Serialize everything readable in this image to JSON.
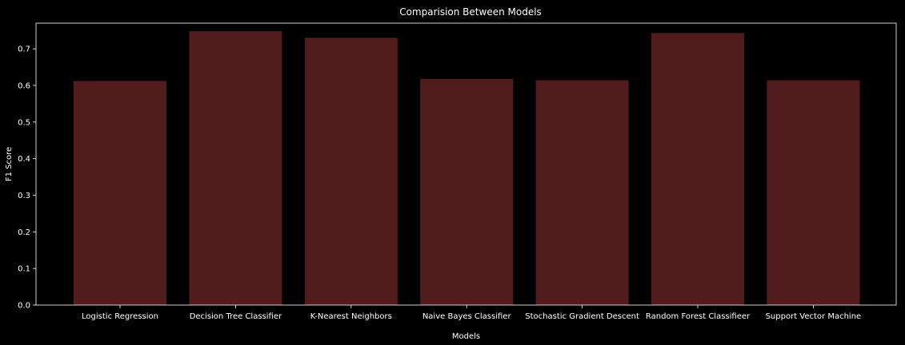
{
  "colors": {
    "background": "#000000",
    "bar": "#521c1f",
    "axis": "#ffffff",
    "text": "#ffffff"
  },
  "chart_data": {
    "type": "bar",
    "title": "Comparision Between Models",
    "xlabel": "Models",
    "ylabel": "F1 Score",
    "categories": [
      "Logistic Regression",
      "Decision Tree Classifier",
      "K-Nearest Neighbors",
      "Naive Bayes Classifier",
      "Stochastic Gradient Descent",
      "Random Forest Classifieer",
      "Support Vector Machine"
    ],
    "values": [
      0.612,
      0.748,
      0.73,
      0.618,
      0.614,
      0.743,
      0.614
    ],
    "ylim": [
      0,
      0.77
    ],
    "yticks": [
      0.0,
      0.1,
      0.2,
      0.3,
      0.4,
      0.5,
      0.6,
      0.7
    ],
    "ytick_labels": [
      "0.0",
      "0.1",
      "0.2",
      "0.3",
      "0.4",
      "0.5",
      "0.6",
      "0.7"
    ],
    "grid": false,
    "legend": "none"
  }
}
